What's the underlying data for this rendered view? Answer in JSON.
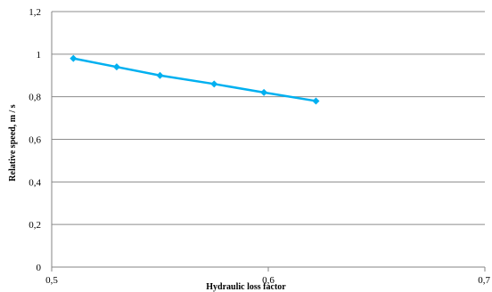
{
  "chart_data": {
    "type": "line",
    "title": "",
    "xlabel": "Hydraulic loss factor",
    "ylabel": "Relative speed, m / s",
    "xlim": [
      0.5,
      0.7
    ],
    "ylim": [
      0,
      1.2
    ],
    "x_ticks": [
      0.5,
      0.6,
      0.7
    ],
    "x_tick_labels": [
      "0,5",
      "0,6",
      "0,7"
    ],
    "y_ticks": [
      0,
      0.2,
      0.4,
      0.6,
      0.8,
      1.0,
      1.2
    ],
    "y_tick_labels": [
      "0",
      "0,2",
      "0,4",
      "0,6",
      "0,8",
      "1",
      "1,2"
    ],
    "grid": "horizontal",
    "legend": "none",
    "series": [
      {
        "color": "#00B0F0",
        "marker": "diamond",
        "x": [
          0.51,
          0.53,
          0.55,
          0.575,
          0.598,
          0.622
        ],
        "y": [
          0.98,
          0.94,
          0.9,
          0.86,
          0.82,
          0.78
        ]
      }
    ]
  }
}
